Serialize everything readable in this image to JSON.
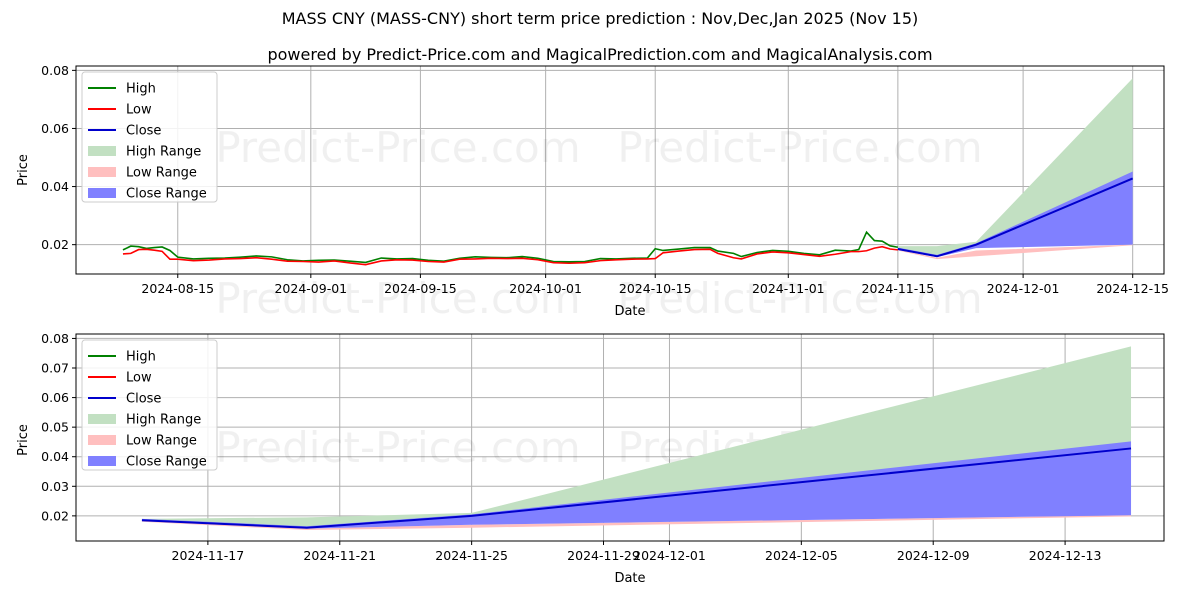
{
  "title": "MASS CNY (MASS-CNY) short term price prediction : Nov,Dec,Jan 2025 (Nov 15)",
  "subtitle": "powered by Predict-Price.com and MagicalPrediction.com and MagicalAnalysis.com",
  "watermark": "Predict-Price.com",
  "colors": {
    "high": "#008000",
    "low": "#ff0000",
    "close": "#0000cc",
    "high_range": "#c2e0c2",
    "low_range": "#ffbfbf",
    "close_range": "#8080ff",
    "grid": "#b0b0b0"
  },
  "legend": [
    "High",
    "Low",
    "Close",
    "High Range",
    "Low Range",
    "Close Range"
  ],
  "chart_data": [
    {
      "type": "line",
      "name": "history-and-forecast",
      "title": "",
      "xlabel": "Date",
      "ylabel": "Price",
      "ylim": [
        0.0099,
        0.0815
      ],
      "xlim": [
        "2024-08-02",
        "2024-12-19"
      ],
      "yticks": [
        0.02,
        0.04,
        0.06,
        0.08
      ],
      "ytick_labels": [
        "0.02",
        "0.04",
        "0.06",
        "0.08"
      ],
      "xticks": [
        "2024-08-15",
        "2024-09-01",
        "2024-09-15",
        "2024-10-01",
        "2024-10-15",
        "2024-11-01",
        "2024-11-15",
        "2024-12-01",
        "2024-12-15"
      ],
      "grid": true,
      "legend_position": "upper left",
      "history": {
        "dates": [
          "2024-08-08",
          "2024-08-09",
          "2024-08-10",
          "2024-08-11",
          "2024-08-12",
          "2024-08-13",
          "2024-08-14",
          "2024-08-15",
          "2024-08-17",
          "2024-08-19",
          "2024-08-21",
          "2024-08-23",
          "2024-08-25",
          "2024-08-27",
          "2024-08-29",
          "2024-08-31",
          "2024-09-02",
          "2024-09-04",
          "2024-09-06",
          "2024-09-08",
          "2024-09-10",
          "2024-09-12",
          "2024-09-14",
          "2024-09-16",
          "2024-09-18",
          "2024-09-20",
          "2024-09-22",
          "2024-09-24",
          "2024-09-26",
          "2024-09-28",
          "2024-09-30",
          "2024-10-02",
          "2024-10-04",
          "2024-10-06",
          "2024-10-08",
          "2024-10-10",
          "2024-10-12",
          "2024-10-14",
          "2024-10-15",
          "2024-10-16",
          "2024-10-18",
          "2024-10-20",
          "2024-10-22",
          "2024-10-23",
          "2024-10-25",
          "2024-10-26",
          "2024-10-28",
          "2024-10-30",
          "2024-11-01",
          "2024-11-03",
          "2024-11-05",
          "2024-11-07",
          "2024-11-09",
          "2024-11-10",
          "2024-11-11",
          "2024-11-12",
          "2024-11-13",
          "2024-11-14",
          "2024-11-15"
        ],
        "high": [
          0.0182,
          0.0195,
          0.0193,
          0.0187,
          0.019,
          0.0192,
          0.018,
          0.0157,
          0.0151,
          0.0153,
          0.0154,
          0.0157,
          0.0161,
          0.0158,
          0.0148,
          0.0144,
          0.0146,
          0.0147,
          0.0143,
          0.0139,
          0.0154,
          0.0151,
          0.0152,
          0.0146,
          0.0143,
          0.0153,
          0.0158,
          0.0156,
          0.0155,
          0.0159,
          0.0153,
          0.0142,
          0.0141,
          0.0142,
          0.0152,
          0.0151,
          0.0153,
          0.0154,
          0.0186,
          0.018,
          0.0185,
          0.019,
          0.019,
          0.0178,
          0.017,
          0.0159,
          0.0173,
          0.018,
          0.0177,
          0.017,
          0.0165,
          0.0181,
          0.0178,
          0.0183,
          0.0243,
          0.0214,
          0.0212,
          0.0196,
          0.0191
        ],
        "low": [
          0.0168,
          0.017,
          0.0183,
          0.0184,
          0.0181,
          0.0177,
          0.015,
          0.015,
          0.0145,
          0.0147,
          0.0151,
          0.0152,
          0.0155,
          0.015,
          0.0143,
          0.0142,
          0.014,
          0.0144,
          0.0137,
          0.0131,
          0.0144,
          0.0148,
          0.0147,
          0.0142,
          0.014,
          0.015,
          0.0151,
          0.0153,
          0.0152,
          0.0153,
          0.0148,
          0.0138,
          0.0136,
          0.0138,
          0.0145,
          0.0148,
          0.015,
          0.0151,
          0.0152,
          0.0172,
          0.0178,
          0.0183,
          0.0184,
          0.017,
          0.0155,
          0.0151,
          0.0168,
          0.0175,
          0.0172,
          0.0166,
          0.016,
          0.0167,
          0.0176,
          0.0176,
          0.0179,
          0.0188,
          0.0193,
          0.0185,
          0.0182
        ]
      },
      "forecast": {
        "dates": [
          "2024-11-15",
          "2024-11-20",
          "2024-11-25",
          "2024-12-15"
        ],
        "close": [
          0.0185,
          0.016,
          0.02,
          0.0428
        ],
        "close_range_upper": [
          0.019,
          0.0165,
          0.0205,
          0.0452
        ],
        "close_range_lower": [
          0.0182,
          0.0157,
          0.0188,
          0.02
        ],
        "high_range_upper": [
          0.0195,
          0.0195,
          0.021,
          0.0773
        ],
        "high_range_lower": [
          0.0182,
          0.0158,
          0.0198,
          0.02
        ],
        "low_range_upper": [
          0.0182,
          0.0155,
          0.018,
          0.02
        ],
        "low_range_lower": [
          0.018,
          0.015,
          0.016,
          0.0198
        ]
      }
    },
    {
      "type": "area",
      "name": "forecast-detail",
      "title": "",
      "xlabel": "Date",
      "ylabel": "Price",
      "ylim": [
        0.0115,
        0.0815
      ],
      "xlim": [
        "2024-11-13",
        "2024-12-16"
      ],
      "yticks": [
        0.02,
        0.03,
        0.04,
        0.05,
        0.06,
        0.07,
        0.08
      ],
      "ytick_labels": [
        "0.02",
        "0.03",
        "0.04",
        "0.05",
        "0.06",
        "0.07",
        "0.08"
      ],
      "xticks": [
        "2024-11-17",
        "2024-11-21",
        "2024-11-25",
        "2024-11-29",
        "2024-12-01",
        "2024-12-05",
        "2024-12-09",
        "2024-12-13"
      ],
      "grid": true,
      "legend_position": "upper left",
      "forecast": {
        "dates": [
          "2024-11-15",
          "2024-11-20",
          "2024-11-25",
          "2024-12-15"
        ],
        "close": [
          0.0185,
          0.016,
          0.02,
          0.0428
        ],
        "close_range_upper": [
          0.019,
          0.0165,
          0.0205,
          0.0452
        ],
        "close_range_lower": [
          0.0182,
          0.0157,
          0.017,
          0.0202
        ],
        "high_range_upper": [
          0.019,
          0.0195,
          0.021,
          0.0773
        ],
        "high_range_lower": [
          0.0185,
          0.016,
          0.02,
          0.0202
        ],
        "low_range_upper": [
          0.0182,
          0.0157,
          0.017,
          0.0202
        ],
        "low_range_lower": [
          0.018,
          0.0152,
          0.016,
          0.0198
        ]
      }
    }
  ]
}
